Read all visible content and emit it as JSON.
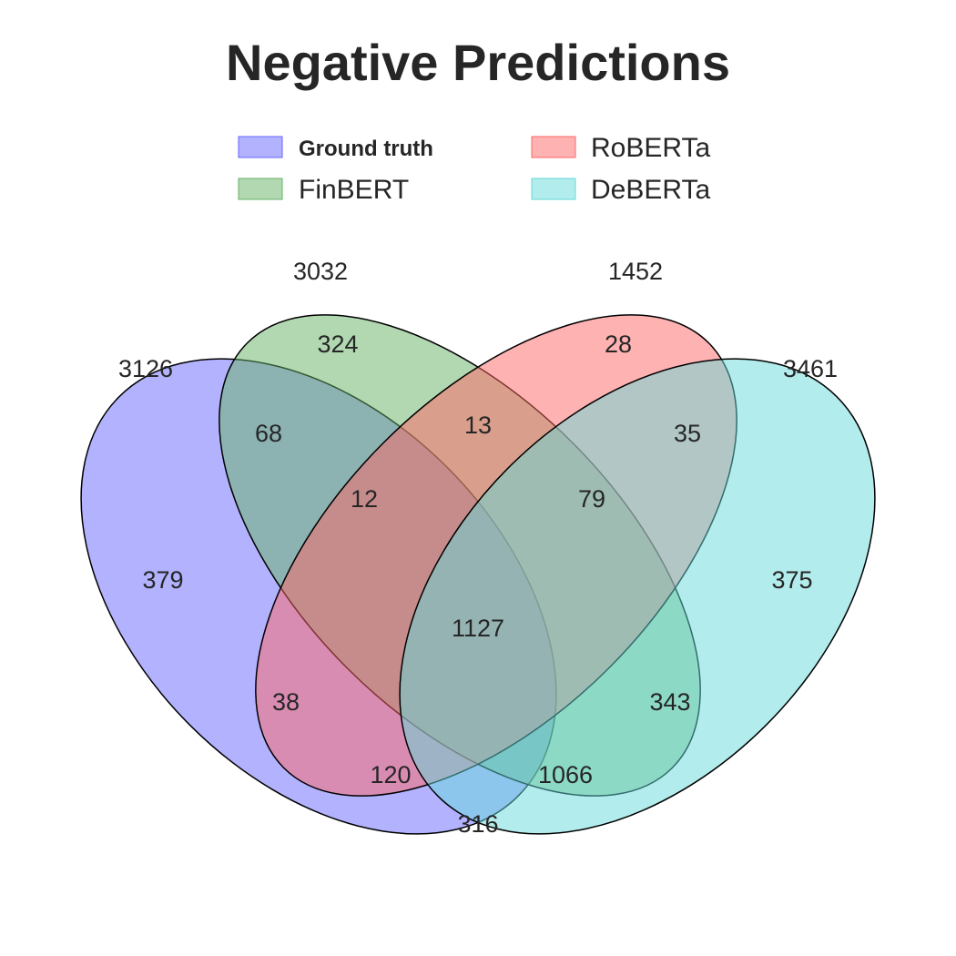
{
  "title": "Negative Predictions",
  "sets": [
    {
      "key": "gt",
      "name": "Ground truth",
      "total": "3126",
      "color": "#6666ff"
    },
    {
      "key": "finbert",
      "name": "FinBERT",
      "total": "3032",
      "color": "#66b266"
    },
    {
      "key": "roberta",
      "name": "RoBERTa",
      "total": "1452",
      "color": "#ff6666"
    },
    {
      "key": "deberta",
      "name": "DeBERTa",
      "total": "3461",
      "color": "#66d9d9"
    }
  ],
  "regions": {
    "gt_only": "379",
    "finbert_only": "324",
    "roberta_only": "28",
    "deberta_only": "375",
    "gt_finbert": "68",
    "finbert_roberta": "13",
    "roberta_deberta": "35",
    "gt_roberta": "38",
    "gt_deberta": "316",
    "finbert_deberta": "343",
    "gt_finbert_roberta": "12",
    "finbert_roberta_deberta": "79",
    "gt_roberta_deberta": "120",
    "gt_finbert_deberta": "1066",
    "all_four": "1127"
  }
}
